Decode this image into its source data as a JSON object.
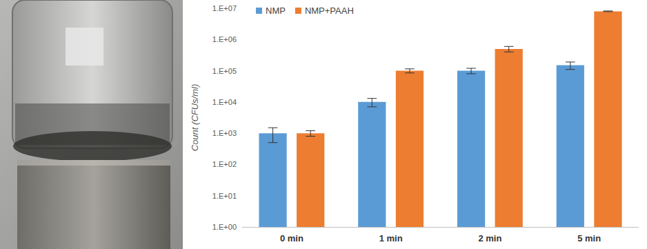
{
  "chart_data": {
    "type": "bar",
    "categories": [
      "0 min",
      "1 min",
      "2 min",
      "5 min"
    ],
    "series": [
      {
        "name": "NMP",
        "color": "#5b9bd5",
        "values": [
          1000,
          10000,
          100000,
          150000
        ],
        "errors": [
          500,
          3000,
          20000,
          40000
        ]
      },
      {
        "name": "NMP+PAAH",
        "color": "#ed7d31",
        "values": [
          1000,
          100000,
          500000,
          8000000
        ],
        "errors": [
          200,
          15000,
          100000,
          200000
        ]
      }
    ],
    "y_label": "Count (CFUs/ml)",
    "log": "y",
    "ylim": [
      1,
      10000000
    ],
    "yticks": [
      {
        "value": 1,
        "label": "1.E+00"
      },
      {
        "value": 10,
        "label": "1.E+01"
      },
      {
        "value": 100,
        "label": "1.E+02"
      },
      {
        "value": 1000,
        "label": "1.E+03"
      },
      {
        "value": 10000,
        "label": "1.E+04"
      },
      {
        "value": 100000,
        "label": "1.E+05"
      },
      {
        "value": 1000000,
        "label": "1.E+06"
      },
      {
        "value": 10000000,
        "label": "1.E+07"
      }
    ],
    "grid": false,
    "legend": "top-left"
  }
}
